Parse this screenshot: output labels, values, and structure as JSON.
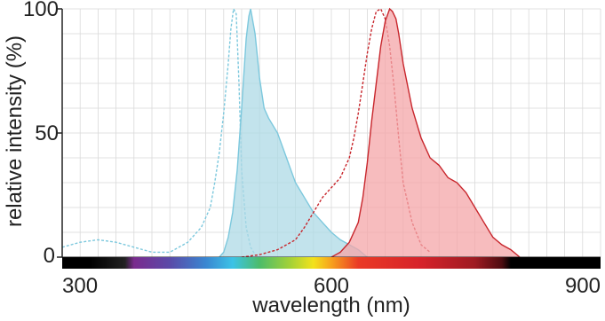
{
  "chart_data": {
    "type": "area",
    "title": "",
    "xlabel": "wavelength (nm)",
    "ylabel": "relative intensity (%)",
    "xlim": [
      300,
      900
    ],
    "ylim": [
      0,
      100
    ],
    "x_ticks": [
      300,
      600,
      900
    ],
    "y_ticks": [
      0,
      50,
      100
    ],
    "grid": true,
    "legend": "none",
    "colors": {
      "blue_fill": "#aed9e6",
      "blue_line": "#7cc8dd",
      "red_fill": "#f4a6a8",
      "red_line": "#c8262c",
      "grid": "#d9d9d9",
      "axis": "#222222"
    },
    "series": [
      {
        "style": "excitation",
        "color": "blue",
        "filled": false,
        "x": [
          300,
          320,
          340,
          360,
          380,
          400,
          420,
          440,
          455,
          465,
          470,
          475,
          480,
          485,
          488,
          491,
          494,
          497,
          500,
          505,
          510,
          515,
          520
        ],
        "y": [
          4,
          6,
          7,
          6,
          4,
          2,
          2,
          6,
          12,
          20,
          30,
          42,
          58,
          78,
          92,
          100,
          98,
          70,
          35,
          12,
          4,
          1,
          0
        ]
      },
      {
        "style": "emission",
        "color": "blue",
        "filled": true,
        "x": [
          475,
          480,
          485,
          490,
          495,
          500,
          505,
          508,
          510,
          515,
          520,
          525,
          530,
          540,
          550,
          560,
          570,
          580,
          590,
          600,
          610,
          620,
          630,
          640
        ],
        "y": [
          0,
          2,
          8,
          18,
          35,
          60,
          88,
          97,
          100,
          90,
          72,
          60,
          56,
          50,
          40,
          30,
          24,
          18,
          14,
          10,
          7,
          5,
          3,
          0
        ]
      },
      {
        "style": "excitation",
        "color": "red",
        "filled": false,
        "x": [
          500,
          520,
          540,
          560,
          570,
          580,
          590,
          600,
          610,
          620,
          625,
          630,
          635,
          640,
          645,
          650,
          655,
          660,
          665,
          670,
          675,
          680,
          690,
          700,
          710
        ],
        "y": [
          0,
          1,
          3,
          7,
          12,
          18,
          24,
          28,
          32,
          40,
          48,
          58,
          70,
          82,
          92,
          99,
          100,
          96,
          85,
          68,
          48,
          30,
          14,
          5,
          2
        ]
      },
      {
        "style": "emission",
        "color": "red",
        "filled": true,
        "x": [
          600,
          610,
          620,
          630,
          635,
          640,
          645,
          650,
          655,
          660,
          665,
          668,
          672,
          675,
          680,
          690,
          700,
          710,
          720,
          730,
          740,
          750,
          760,
          770,
          780,
          790,
          800,
          810
        ],
        "y": [
          0,
          2,
          6,
          14,
          24,
          38,
          55,
          70,
          85,
          95,
          100,
          99,
          96,
          90,
          78,
          60,
          48,
          40,
          37,
          32,
          30,
          26,
          20,
          14,
          8,
          5,
          3,
          0
        ]
      }
    ],
    "spectrum_bar": {
      "range": [
        300,
        900
      ],
      "stops": [
        {
          "nm": 300,
          "color": "#000000"
        },
        {
          "nm": 330,
          "color": "#000000"
        },
        {
          "nm": 370,
          "color": "#222222"
        },
        {
          "nm": 380,
          "color": "#7a2b8e"
        },
        {
          "nm": 420,
          "color": "#5a4aa8"
        },
        {
          "nm": 460,
          "color": "#3a86d1"
        },
        {
          "nm": 490,
          "color": "#3cc3e6"
        },
        {
          "nm": 520,
          "color": "#4cbc6a"
        },
        {
          "nm": 555,
          "color": "#a6d236"
        },
        {
          "nm": 580,
          "color": "#f3e21c"
        },
        {
          "nm": 600,
          "color": "#f7a11e"
        },
        {
          "nm": 630,
          "color": "#ea3a25"
        },
        {
          "nm": 700,
          "color": "#d6222a"
        },
        {
          "nm": 760,
          "color": "#9e1b22"
        },
        {
          "nm": 790,
          "color": "#4d0c10"
        },
        {
          "nm": 800,
          "color": "#000000"
        },
        {
          "nm": 900,
          "color": "#000000"
        }
      ]
    }
  }
}
